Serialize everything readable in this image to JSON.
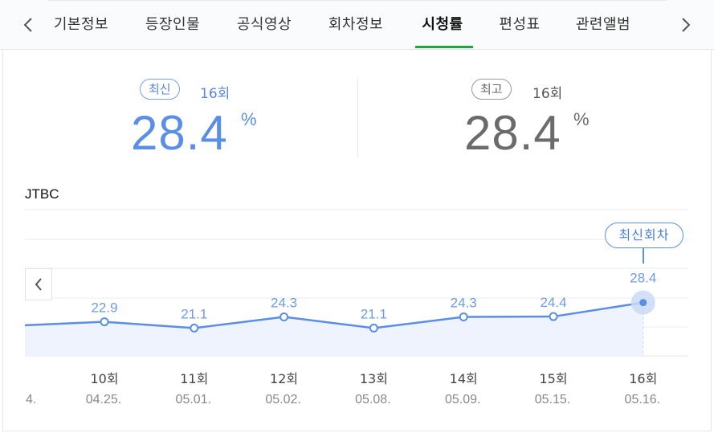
{
  "tabs": {
    "items": [
      "기본정보",
      "등장인물",
      "공식영상",
      "회차정보",
      "시청률",
      "편성표",
      "관련앨범"
    ],
    "active_index": 4
  },
  "latest": {
    "pill": "최신",
    "episode": "16회",
    "value": "28.4",
    "unit": "%"
  },
  "best": {
    "pill": "최고",
    "episode": "16회",
    "value": "28.4",
    "unit": "%"
  },
  "broadcaster": "JTBC",
  "chart_badge": "최신회차",
  "colors": {
    "accent": "#5b8ee6",
    "active_tab_underline": "#1fa83a",
    "area_fill": "#eef3fd"
  },
  "chart_data": {
    "type": "line",
    "series": [
      {
        "values": [
          22.9,
          21.1,
          24.3,
          21.1,
          24.3,
          24.4,
          28.4
        ]
      }
    ],
    "categories": [
      "10회",
      "11회",
      "12회",
      "13회",
      "14회",
      "15회",
      "16회"
    ],
    "dates": [
      "04.25.",
      "05.01.",
      "05.02.",
      "05.08.",
      "05.09.",
      "05.15.",
      "05.16."
    ],
    "cut_off_left_date": "4.",
    "highlight_index": 6
  }
}
